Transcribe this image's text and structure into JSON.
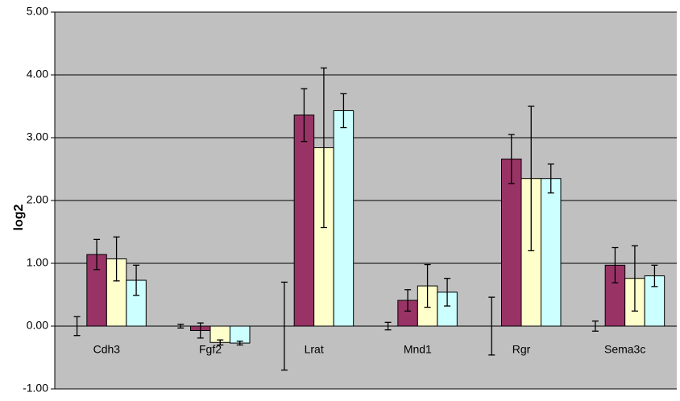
{
  "chart_data": {
    "type": "bar",
    "y_label": "log2",
    "categories": [
      "Cdh3",
      "Fgf2",
      "Lrat",
      "Mnd1",
      "Rgr",
      "Sema3c"
    ],
    "series": [
      {
        "color": "transparent",
        "values": [
          0,
          0,
          0,
          0,
          0,
          0
        ],
        "errors": [
          0.15,
          0.03,
          0.7,
          0.06,
          0.46,
          0.08
        ]
      },
      {
        "color": "#993366",
        "values": [
          1.14,
          -0.07,
          3.36,
          0.41,
          2.66,
          0.97
        ],
        "errors": [
          0.24,
          0.12,
          0.42,
          0.17,
          0.39,
          0.28
        ]
      },
      {
        "color": "#ffffcc",
        "values": [
          1.07,
          -0.26,
          2.84,
          0.64,
          2.35,
          0.76
        ],
        "errors": [
          0.35,
          0.04,
          1.27,
          0.34,
          1.15,
          0.52
        ]
      },
      {
        "color": "#ccffff",
        "values": [
          0.73,
          -0.27,
          3.43,
          0.54,
          2.35,
          0.8
        ],
        "errors": [
          0.24,
          0.03,
          0.27,
          0.22,
          0.23,
          0.17
        ]
      }
    ],
    "ylim": [
      -1,
      5
    ],
    "yticks": [
      {
        "value": -1,
        "label": "-1.00"
      },
      {
        "value": 0,
        "label": "0.00"
      },
      {
        "value": 1,
        "label": "1.00"
      },
      {
        "value": 2,
        "label": "2.00"
      },
      {
        "value": 3,
        "label": "3.00"
      },
      {
        "value": 4,
        "label": "4.00"
      },
      {
        "value": 5,
        "label": "5.00"
      }
    ],
    "grid": true,
    "plot_background": "#c0c0c0"
  }
}
